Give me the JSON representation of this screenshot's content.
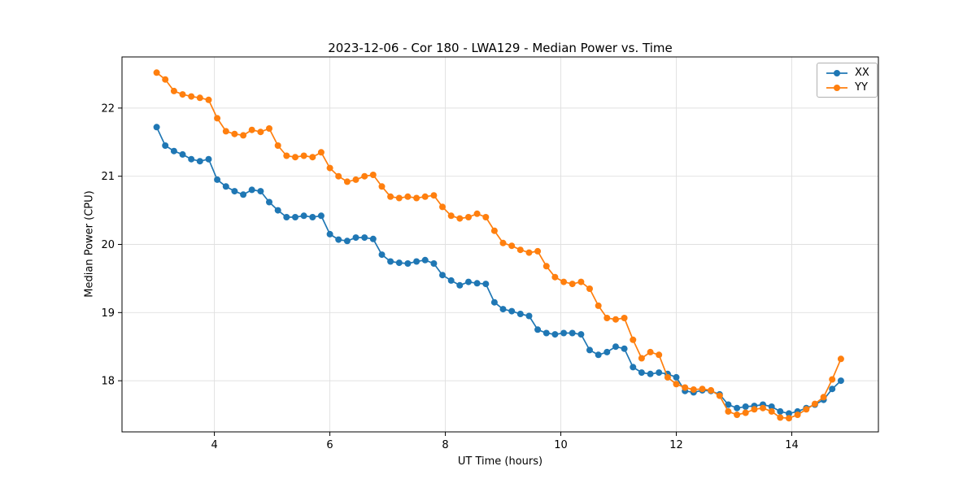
{
  "chart_data": {
    "type": "line",
    "title": "2023-12-06 - Cor 180 - LWA129 - Median Power vs. Time",
    "xlabel": "UT Time (hours)",
    "ylabel": "Median Power (CPU)",
    "xlim": [
      2.4,
      15.5
    ],
    "ylim": [
      17.25,
      22.75
    ],
    "xticks": [
      4,
      6,
      8,
      10,
      12,
      14
    ],
    "yticks": [
      18,
      19,
      20,
      21,
      22
    ],
    "grid": true,
    "legend_position": "upper right",
    "marker": "circle",
    "grid_color": "#e0e0e0",
    "x": [
      3.0,
      3.15,
      3.3,
      3.45,
      3.6,
      3.75,
      3.9,
      4.05,
      4.2,
      4.35,
      4.5,
      4.65,
      4.8,
      4.95,
      5.1,
      5.25,
      5.4,
      5.55,
      5.7,
      5.85,
      6.0,
      6.15,
      6.3,
      6.45,
      6.6,
      6.75,
      6.9,
      7.05,
      7.2,
      7.35,
      7.5,
      7.65,
      7.8,
      7.95,
      8.1,
      8.25,
      8.4,
      8.55,
      8.7,
      8.85,
      9.0,
      9.15,
      9.3,
      9.45,
      9.6,
      9.75,
      9.9,
      10.05,
      10.2,
      10.35,
      10.5,
      10.65,
      10.8,
      10.95,
      11.1,
      11.25,
      11.4,
      11.55,
      11.7,
      11.85,
      12.0,
      12.15,
      12.3,
      12.45,
      12.6,
      12.75,
      12.9,
      13.05,
      13.2,
      13.35,
      13.5,
      13.65,
      13.8,
      13.95,
      14.1,
      14.25,
      14.4,
      14.55,
      14.7,
      14.85
    ],
    "series": [
      {
        "name": "XX",
        "color": "#1f77b4",
        "values": [
          21.72,
          21.45,
          21.37,
          21.32,
          21.25,
          21.22,
          21.25,
          20.95,
          20.85,
          20.78,
          20.73,
          20.8,
          20.78,
          20.62,
          20.5,
          20.4,
          20.4,
          20.42,
          20.4,
          20.42,
          20.15,
          20.07,
          20.05,
          20.1,
          20.1,
          20.08,
          19.85,
          19.75,
          19.73,
          19.72,
          19.75,
          19.77,
          19.72,
          19.55,
          19.47,
          19.4,
          19.45,
          19.43,
          19.42,
          19.15,
          19.05,
          19.02,
          18.98,
          18.95,
          18.75,
          18.7,
          18.68,
          18.7,
          18.7,
          18.68,
          18.45,
          18.38,
          18.42,
          18.5,
          18.47,
          18.2,
          18.12,
          18.1,
          18.12,
          18.1,
          18.05,
          17.85,
          17.83,
          17.86,
          17.85,
          17.8,
          17.65,
          17.6,
          17.62,
          17.63,
          17.65,
          17.62,
          17.55,
          17.52,
          17.55,
          17.6,
          17.65,
          17.72,
          17.88,
          18.0
        ]
      },
      {
        "name": "YY",
        "color": "#ff7f0e",
        "values": [
          22.52,
          22.42,
          22.25,
          22.2,
          22.17,
          22.15,
          22.12,
          21.85,
          21.66,
          21.62,
          21.6,
          21.68,
          21.65,
          21.7,
          21.45,
          21.3,
          21.28,
          21.3,
          21.28,
          21.35,
          21.12,
          21.0,
          20.92,
          20.95,
          21.0,
          21.02,
          20.85,
          20.7,
          20.68,
          20.7,
          20.68,
          20.7,
          20.72,
          20.55,
          20.42,
          20.38,
          20.4,
          20.45,
          20.4,
          20.2,
          20.02,
          19.98,
          19.92,
          19.88,
          19.9,
          19.68,
          19.52,
          19.45,
          19.42,
          19.45,
          19.35,
          19.1,
          18.92,
          18.9,
          18.92,
          18.6,
          18.33,
          18.42,
          18.38,
          18.05,
          17.95,
          17.9,
          17.87,
          17.88,
          17.86,
          17.78,
          17.55,
          17.5,
          17.53,
          17.58,
          17.6,
          17.55,
          17.46,
          17.45,
          17.5,
          17.58,
          17.66,
          17.76,
          18.02,
          18.32
        ]
      }
    ]
  }
}
